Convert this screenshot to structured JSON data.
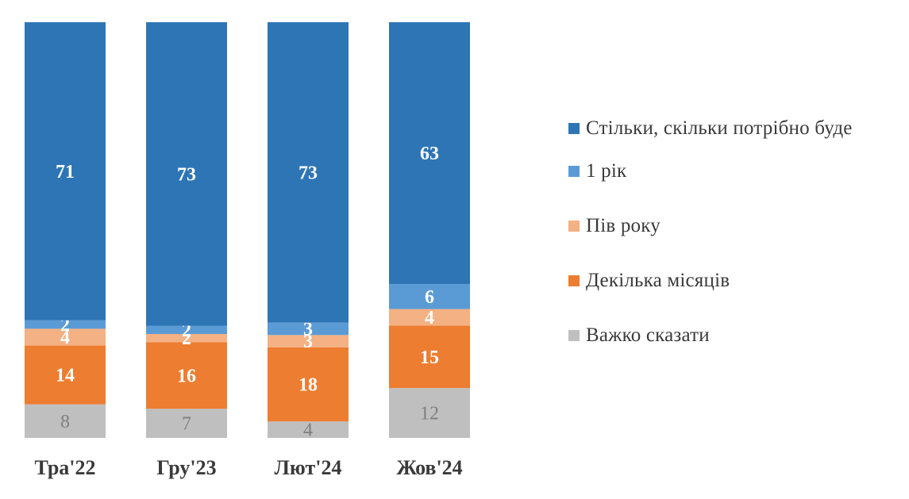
{
  "chart_data": {
    "type": "bar",
    "stacked": true,
    "categories": [
      "Тра'22",
      "Гру'23",
      "Лют'24",
      "Жов'24"
    ],
    "series": [
      {
        "name": "Важко сказати",
        "values": [
          8,
          7,
          4,
          12
        ],
        "color": "#bfbfbf",
        "label_color": "#7f7f7f"
      },
      {
        "name": "Декілька місяців",
        "values": [
          14,
          16,
          18,
          15
        ],
        "color": "#ed7d31",
        "label_color": "#ffffff"
      },
      {
        "name": "Пів року",
        "values": [
          4,
          2,
          3,
          4
        ],
        "color": "#f4b183",
        "label_color": "#ffffff"
      },
      {
        "name": "1 рік",
        "values": [
          2,
          2,
          3,
          6
        ],
        "color": "#5b9bd5",
        "label_color": "#ffffff"
      },
      {
        "name": "Стільки, скільки потрібно буде",
        "values": [
          71,
          73,
          73,
          63
        ],
        "color": "#2e75b6",
        "label_color": "#ffffff"
      }
    ],
    "ylim": [
      0,
      100
    ],
    "grid": false,
    "legend_position": "right"
  },
  "legend": [
    {
      "label": "Стільки, скільки потрібно буде",
      "color": "#2e75b6"
    },
    {
      "label": "1 рік",
      "color": "#5b9bd5"
    },
    {
      "label": "Пів року",
      "color": "#f4b183"
    },
    {
      "label": "Декілька місяців",
      "color": "#ed7d31"
    },
    {
      "label": "Важко сказати",
      "color": "#bfbfbf"
    }
  ]
}
